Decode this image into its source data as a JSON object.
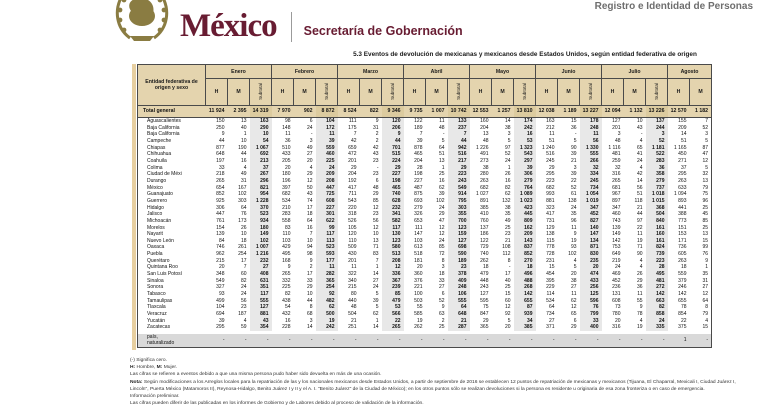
{
  "header": {
    "brand": "México",
    "secretaria": "Secretaría de Gobernación",
    "unit": "Registro e Identidad de Personas"
  },
  "title": "5.3 Eventos de devolución de mexicanas y mexicanos desde Estados Unidos, según entidad federativa de origen",
  "table": {
    "group_label": "Entidad federativa de origen y sexo",
    "months": [
      "Enero",
      "Febrero",
      "Marzo",
      "Abril",
      "Mayo",
      "Junio",
      "Julio",
      "Agosto"
    ],
    "sex_headers": [
      "H",
      "M",
      "Subtotal"
    ],
    "last_month_cols": 2,
    "total": {
      "name": "Total general",
      "values": [
        "11 924",
        "2 395",
        "14 319",
        "7 970",
        "902",
        "8 872",
        "8 524",
        "822",
        "9 346",
        "9 735",
        "1 007",
        "10 742",
        "12 553",
        "1 257",
        "13 810",
        "12 038",
        "1 189",
        "13 227",
        "12 094",
        "1 132",
        "13 226",
        "12 570",
        "1 182"
      ]
    },
    "rows": [
      {
        "name": "Aguascalientes",
        "values": [
          "150",
          "13",
          "163",
          "98",
          "6",
          "104",
          "111",
          "9",
          "120",
          "122",
          "11",
          "133",
          "160",
          "14",
          "174",
          "163",
          "15",
          "178",
          "127",
          "10",
          "137",
          "155",
          "7"
        ]
      },
      {
        "name": "Baja California",
        "values": [
          "250",
          "40",
          "290",
          "148",
          "24",
          "172",
          "175",
          "31",
          "206",
          "189",
          "48",
          "237",
          "204",
          "38",
          "242",
          "212",
          "36",
          "248",
          "201",
          "43",
          "244",
          "209",
          "52"
        ]
      },
      {
        "name": "Baja California",
        "values": [
          "9",
          "1",
          "10",
          "11",
          "-",
          "11",
          "7",
          "2",
          "9",
          "7",
          "-",
          "7",
          "13",
          "3",
          "16",
          "11",
          "-",
          "11",
          "3",
          "-",
          "3",
          "14",
          "3"
        ]
      },
      {
        "name": "Campeche",
        "values": [
          "44",
          "10",
          "54",
          "36",
          "3",
          "39",
          "42",
          "2",
          "44",
          "39",
          "5",
          "44",
          "48",
          "5",
          "53",
          "51",
          "5",
          "56",
          "48",
          "4",
          "52",
          "51",
          "5"
        ]
      },
      {
        "name": "Chiapas",
        "values": [
          "877",
          "190",
          "1 067",
          "510",
          "49",
          "559",
          "659",
          "42",
          "701",
          "878",
          "64",
          "942",
          "1 226",
          "97",
          "1 323",
          "1 240",
          "90",
          "1 330",
          "1 116",
          "65",
          "1 181",
          "1 165",
          "87"
        ]
      },
      {
        "name": "Chihuahua",
        "values": [
          "648",
          "44",
          "692",
          "433",
          "27",
          "460",
          "472",
          "43",
          "515",
          "465",
          "51",
          "516",
          "491",
          "52",
          "543",
          "516",
          "39",
          "555",
          "481",
          "41",
          "522",
          "450",
          "47"
        ]
      },
      {
        "name": "Coahuila",
        "values": [
          "197",
          "16",
          "213",
          "205",
          "20",
          "225",
          "201",
          "23",
          "224",
          "204",
          "13",
          "217",
          "273",
          "24",
          "297",
          "245",
          "21",
          "266",
          "259",
          "24",
          "283",
          "271",
          "12"
        ]
      },
      {
        "name": "Colima",
        "values": [
          "33",
          "4",
          "37",
          "20",
          "4",
          "24",
          "29",
          "-",
          "29",
          "28",
          "1",
          "29",
          "38",
          "1",
          "39",
          "29",
          "3",
          "32",
          "32",
          "4",
          "36",
          "37",
          "5"
        ]
      },
      {
        "name": "Ciudad de Méxi",
        "values": [
          "218",
          "49",
          "267",
          "180",
          "29",
          "209",
          "204",
          "23",
          "227",
          "198",
          "25",
          "223",
          "280",
          "26",
          "306",
          "295",
          "39",
          "334",
          "316",
          "42",
          "358",
          "295",
          "32"
        ]
      },
      {
        "name": "Durango",
        "values": [
          "265",
          "31",
          "296",
          "196",
          "12",
          "208",
          "192",
          "6",
          "198",
          "227",
          "16",
          "243",
          "263",
          "16",
          "279",
          "223",
          "22",
          "245",
          "265",
          "14",
          "279",
          "263",
          "13"
        ]
      },
      {
        "name": "México",
        "values": [
          "654",
          "167",
          "821",
          "397",
          "50",
          "447",
          "417",
          "48",
          "465",
          "487",
          "62",
          "549",
          "682",
          "82",
          "764",
          "682",
          "52",
          "734",
          "681",
          "56",
          "737",
          "633",
          "79"
        ]
      },
      {
        "name": "Guanajuato",
        "values": [
          "852",
          "102",
          "954",
          "682",
          "43",
          "725",
          "711",
          "29",
          "740",
          "875",
          "39",
          "914",
          "1 027",
          "62",
          "1 089",
          "993",
          "61",
          "1 054",
          "967",
          "51",
          "1 018",
          "1 094",
          "75"
        ]
      },
      {
        "name": "Guerrero",
        "values": [
          "925",
          "303",
          "1 228",
          "534",
          "74",
          "608",
          "543",
          "85",
          "628",
          "693",
          "102",
          "795",
          "891",
          "132",
          "1 023",
          "881",
          "138",
          "1 019",
          "897",
          "118",
          "1 015",
          "893",
          "96"
        ]
      },
      {
        "name": "Hidalgo",
        "values": [
          "306",
          "64",
          "370",
          "210",
          "17",
          "227",
          "220",
          "12",
          "232",
          "279",
          "24",
          "303",
          "385",
          "38",
          "423",
          "323",
          "24",
          "347",
          "347",
          "21",
          "368",
          "441",
          "25"
        ]
      },
      {
        "name": "Jalisco",
        "values": [
          "447",
          "76",
          "523",
          "283",
          "18",
          "301",
          "318",
          "23",
          "341",
          "326",
          "29",
          "355",
          "410",
          "35",
          "445",
          "417",
          "35",
          "452",
          "460",
          "44",
          "504",
          "388",
          "45"
        ]
      },
      {
        "name": "Michoacán",
        "values": [
          "761",
          "173",
          "934",
          "558",
          "64",
          "622",
          "526",
          "56",
          "582",
          "653",
          "47",
          "700",
          "760",
          "49",
          "809",
          "731",
          "96",
          "827",
          "743",
          "97",
          "840",
          "773",
          "85"
        ]
      },
      {
        "name": "Morelos",
        "values": [
          "154",
          "26",
          "180",
          "83",
          "16",
          "99",
          "105",
          "12",
          "117",
          "111",
          "12",
          "123",
          "137",
          "25",
          "162",
          "129",
          "11",
          "140",
          "139",
          "22",
          "161",
          "151",
          "25"
        ]
      },
      {
        "name": "Nayarit",
        "values": [
          "139",
          "10",
          "149",
          "110",
          "7",
          "117",
          "120",
          "10",
          "130",
          "147",
          "12",
          "159",
          "186",
          "23",
          "209",
          "138",
          "9",
          "147",
          "149",
          "11",
          "160",
          "153",
          "13"
        ]
      },
      {
        "name": "Nuevo León",
        "values": [
          "84",
          "18",
          "102",
          "103",
          "10",
          "113",
          "110",
          "13",
          "123",
          "103",
          "24",
          "127",
          "122",
          "21",
          "143",
          "115",
          "19",
          "134",
          "142",
          "19",
          "161",
          "171",
          "15"
        ]
      },
      {
        "name": "Oaxaca",
        "values": [
          "746",
          "261",
          "1 007",
          "429",
          "94",
          "523",
          "509",
          "71",
          "580",
          "613",
          "85",
          "698",
          "729",
          "108",
          "837",
          "778",
          "93",
          "871",
          "753",
          "71",
          "824",
          "736",
          "99"
        ]
      },
      {
        "name": "Puebla",
        "values": [
          "962",
          "254",
          "1 216",
          "495",
          "98",
          "593",
          "430",
          "83",
          "513",
          "518",
          "72",
          "590",
          "740",
          "112",
          "852",
          "728",
          "102",
          "830",
          "649",
          "90",
          "739",
          "605",
          "76"
        ]
      },
      {
        "name": "Querétaro",
        "values": [
          "215",
          "17",
          "232",
          "168",
          "9",
          "177",
          "201",
          "7",
          "208",
          "181",
          "8",
          "189",
          "262",
          "8",
          "270",
          "231",
          "4",
          "235",
          "219",
          "4",
          "223",
          "263",
          "9"
        ]
      },
      {
        "name": "Quintana Roo",
        "values": [
          "20",
          "7",
          "27",
          "9",
          "2",
          "11",
          "11",
          "1",
          "12",
          "20",
          "3",
          "23",
          "18",
          "-",
          "18",
          "15",
          "5",
          "20",
          "24",
          "4",
          "28",
          "18",
          "1"
        ]
      },
      {
        "name": "San Luis Potosí",
        "values": [
          "348",
          "60",
          "408",
          "265",
          "17",
          "282",
          "322",
          "14",
          "336",
          "360",
          "18",
          "378",
          "479",
          "17",
          "496",
          "454",
          "20",
          "474",
          "469",
          "26",
          "495",
          "559",
          "35"
        ]
      },
      {
        "name": "Sinaloa",
        "values": [
          "549",
          "82",
          "631",
          "332",
          "33",
          "365",
          "340",
          "27",
          "367",
          "376",
          "33",
          "409",
          "448",
          "40",
          "488",
          "395",
          "38",
          "433",
          "452",
          "29",
          "481",
          "379",
          "31"
        ]
      },
      {
        "name": "Sonora",
        "values": [
          "327",
          "24",
          "351",
          "225",
          "29",
          "254",
          "215",
          "24",
          "239",
          "221",
          "27",
          "248",
          "243",
          "25",
          "268",
          "229",
          "27",
          "256",
          "236",
          "36",
          "272",
          "246",
          "27"
        ]
      },
      {
        "name": "Tabasco",
        "values": [
          "93",
          "24",
          "117",
          "82",
          "10",
          "92",
          "80",
          "5",
          "85",
          "100",
          "6",
          "106",
          "127",
          "15",
          "142",
          "114",
          "11",
          "125",
          "131",
          "11",
          "142",
          "142",
          "12"
        ]
      },
      {
        "name": "Tamaulipas",
        "values": [
          "499",
          "56",
          "555",
          "438",
          "44",
          "482",
          "440",
          "39",
          "479",
          "503",
          "52",
          "555",
          "595",
          "60",
          "655",
          "534",
          "62",
          "596",
          "608",
          "55",
          "663",
          "655",
          "64"
        ]
      },
      {
        "name": "Tlaxcala",
        "values": [
          "104",
          "23",
          "127",
          "54",
          "8",
          "62",
          "48",
          "5",
          "53",
          "55",
          "9",
          "64",
          "75",
          "12",
          "87",
          "64",
          "12",
          "76",
          "73",
          "9",
          "82",
          "78",
          "8"
        ]
      },
      {
        "name": "Veracruz",
        "values": [
          "694",
          "187",
          "881",
          "432",
          "68",
          "500",
          "504",
          "62",
          "566",
          "585",
          "63",
          "648",
          "847",
          "92",
          "939",
          "734",
          "65",
          "799",
          "780",
          "78",
          "858",
          "854",
          "79"
        ]
      },
      {
        "name": "Yucatán",
        "values": [
          "39",
          "4",
          "43",
          "16",
          "3",
          "19",
          "21",
          "1",
          "22",
          "19",
          "2",
          "21",
          "29",
          "5",
          "34",
          "27",
          "6",
          "33",
          "20",
          "4",
          "24",
          "22",
          "4"
        ]
      },
      {
        "name": "Zacatecas",
        "values": [
          "295",
          "59",
          "354",
          "228",
          "14",
          "242",
          "251",
          "14",
          "265",
          "262",
          "25",
          "287",
          "365",
          "20",
          "385",
          "371",
          "29",
          "400",
          "316",
          "19",
          "335",
          "375",
          "15"
        ]
      }
    ],
    "last_row": {
      "name": "país,\nnaturalizado",
      "values": [
        "-",
        "-",
        "-",
        "-",
        "-",
        "-",
        "-",
        "-",
        "-",
        "-",
        "-",
        "-",
        "-",
        "-",
        "-",
        "-",
        "-",
        "-",
        "-",
        "-",
        "-",
        "1",
        "-"
      ]
    }
  },
  "footnotes": {
    "line1": "(-) Significa cero.",
    "line2_h": "H:",
    "line2_t1": " Hombre, ",
    "line2_m": "M:",
    "line2_t2": " Mujer.",
    "line3": "Las cifras se refieren a eventos debido a que una misma persona pudo haber sido devuelta en más de una ocasión.",
    "nota_label": "Nota:",
    "nota_text": " Según modificaciones a los Arreglos locales para la repatriación de las y los nacionales mexicanos desde Estados Unidos, a partir de septiembre de 2016 se establecen 12 puntos de repatriación de mexicanas y mexicanos (Tijuana, El Chaparral, Mexicali I, Ciudad Juárez I, Lincoln\", Puerta México (Matamoros II), Reynosa-Hidalgo, Benito Juárez I y II y el A. I. \"Benito Juárez\" de la Ciudad de México); en los otros puntos sólo se realizan devoluciones si la persona es residente u originaria de esa zona fronteriza o en caso de emergencia.",
    "line5": "Información preliminar.",
    "line6": "Las cifras pueden diferir de las publicadas en los informes de Gobierno y de Labores debido al proceso de validación de la información."
  },
  "colors": {
    "wine": "#681c32",
    "tan_header": "#e4d4ae",
    "sub_gray": "#e8e8e8",
    "pais_gray": "#d9d9d9",
    "emblem_gold": "#8a7c42"
  }
}
